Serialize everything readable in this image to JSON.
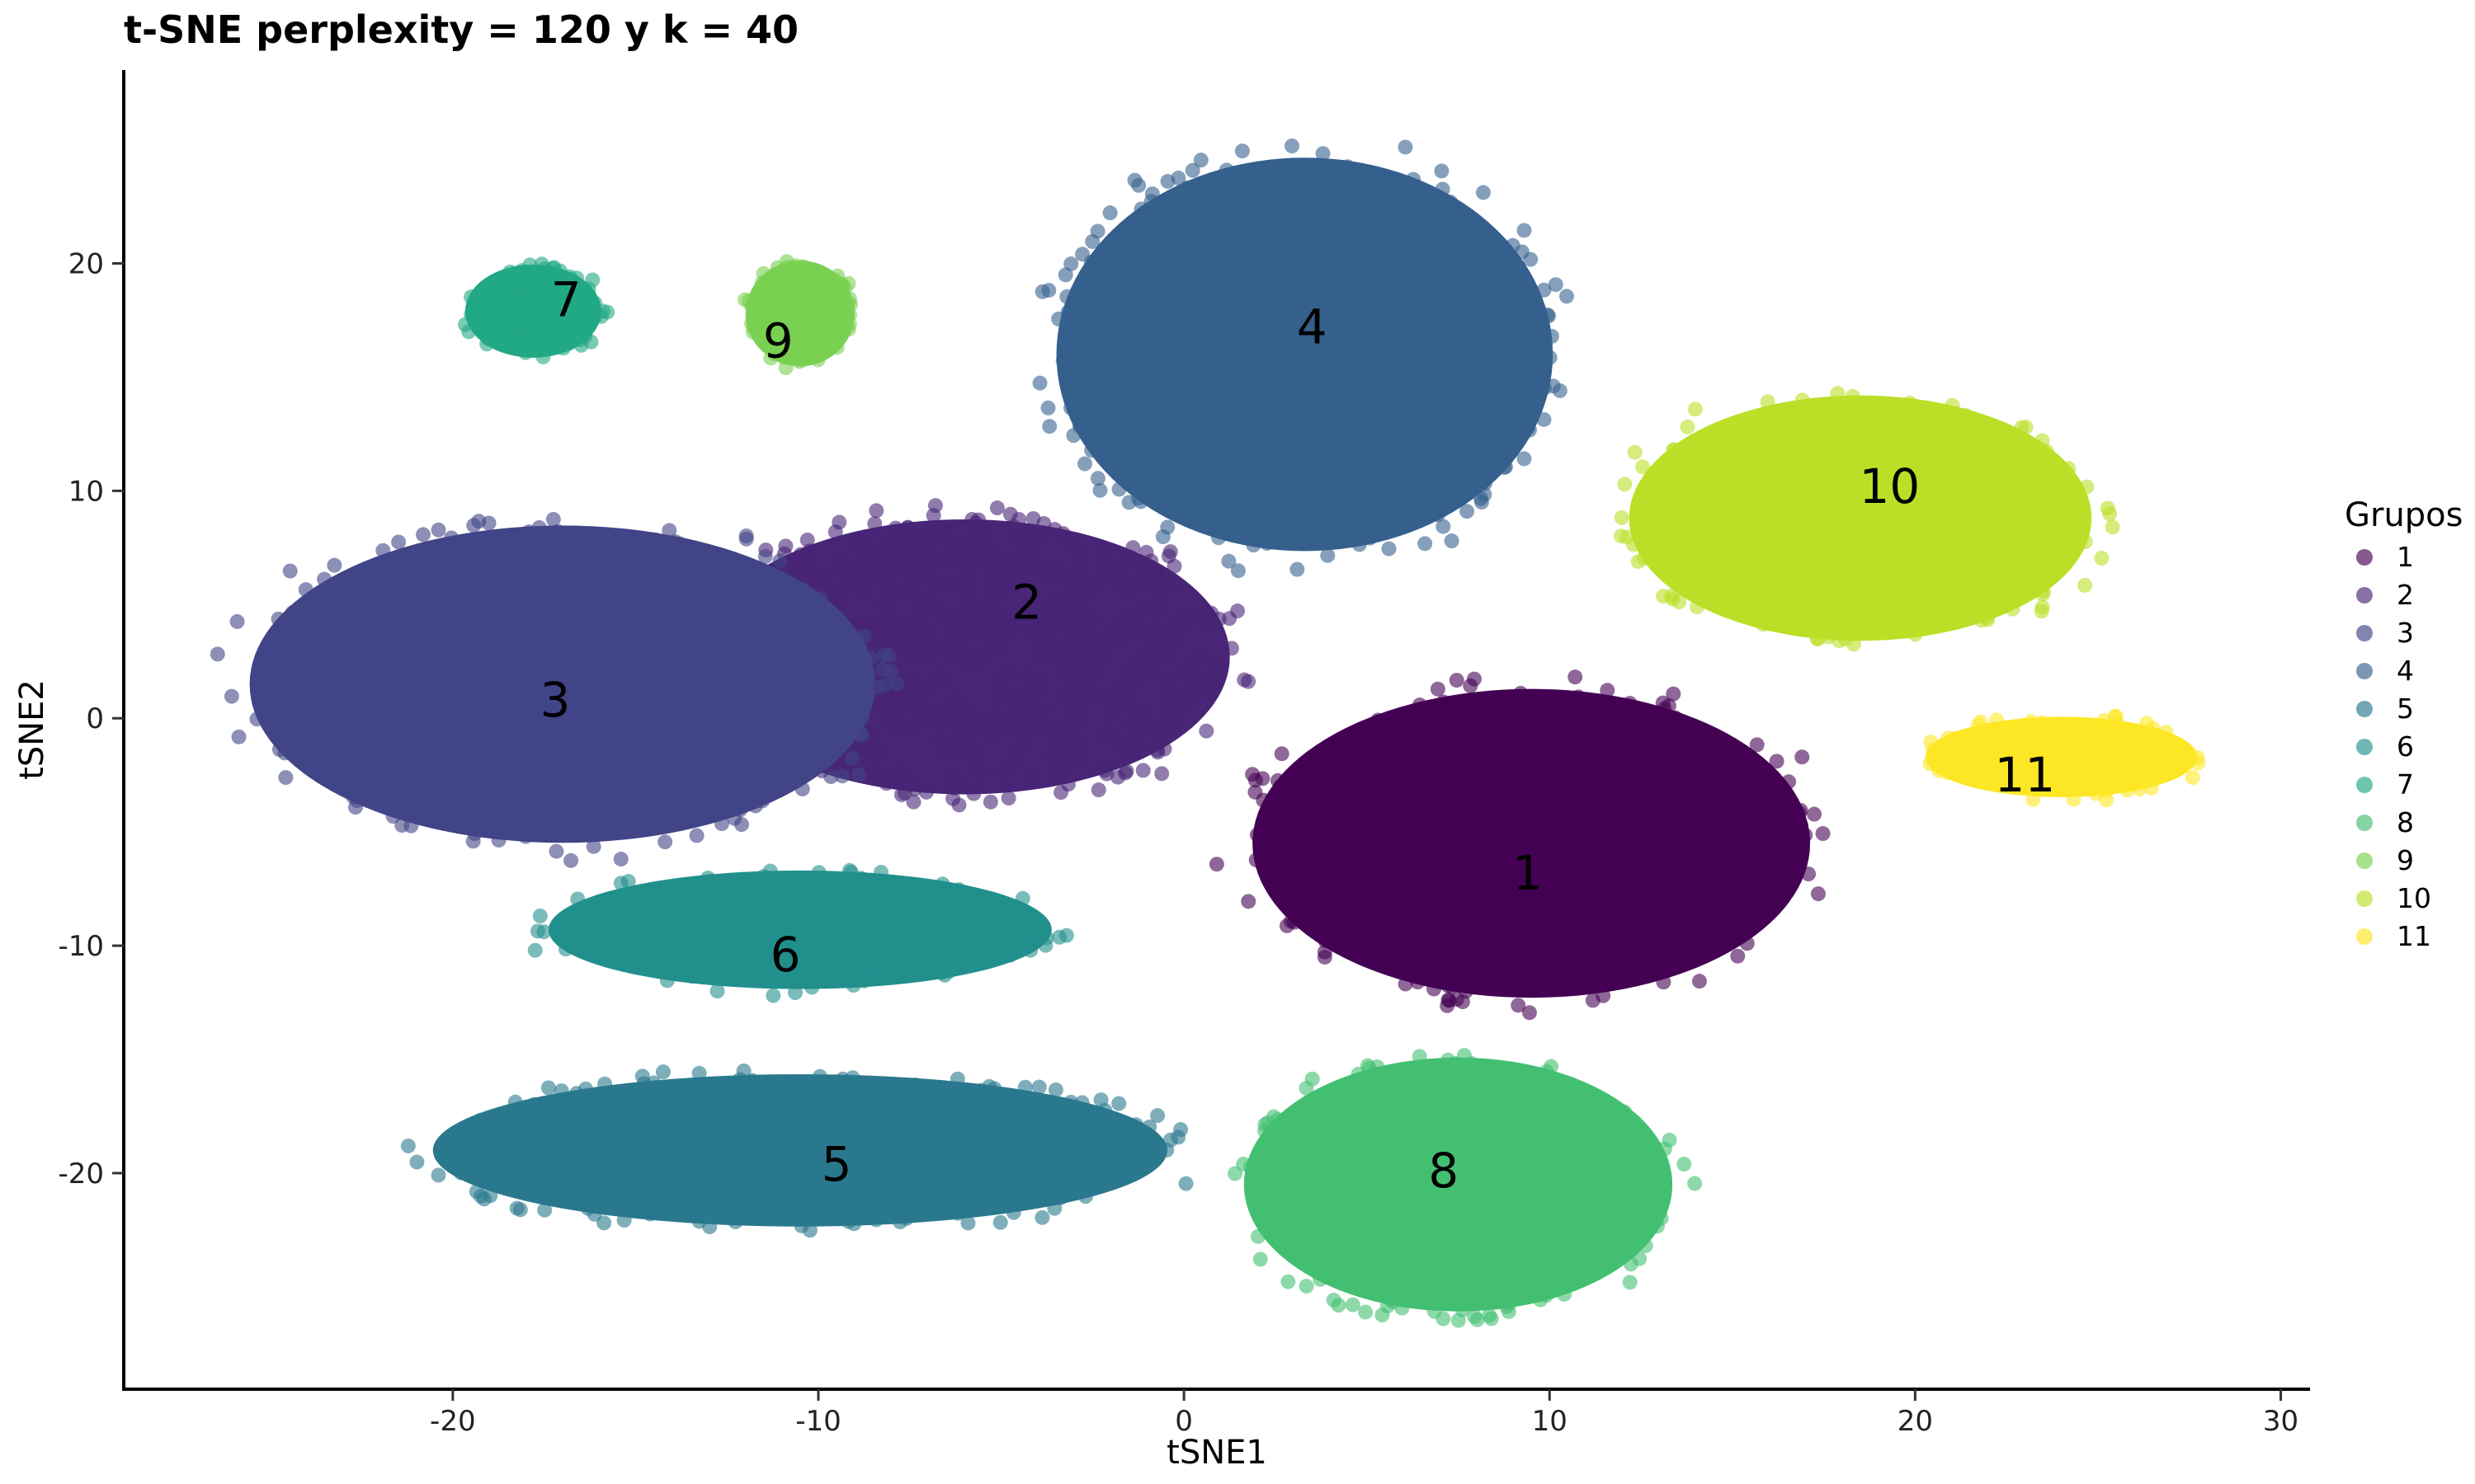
{
  "chart_data": {
    "type": "scatter",
    "title": "t-SNE perplexity = 120 y k = 40",
    "xlabel": "tSNE1",
    "ylabel": "tSNE2",
    "xlim": [
      -29,
      30.8
    ],
    "ylim": [
      -29.5,
      28.5
    ],
    "x_ticks": [
      -20,
      -10,
      0,
      10,
      20,
      30
    ],
    "y_ticks": [
      -20,
      -10,
      0,
      10,
      20
    ],
    "x_tick_labels": [
      "-20",
      "-10",
      "0",
      "10",
      "20",
      "30"
    ],
    "y_tick_labels": [
      "-20",
      "-10",
      "0",
      "10",
      "20"
    ],
    "grid": false,
    "legend": {
      "title": "Grupos",
      "position": "right",
      "entries": [
        "1",
        "2",
        "3",
        "4",
        "5",
        "6",
        "7",
        "8",
        "9",
        "10",
        "11"
      ]
    },
    "series": [
      {
        "name": "1",
        "color": "#440154",
        "label": "1",
        "label_x": 9.4,
        "label_y": -6.8,
        "cx": 9.5,
        "cy": -5.5,
        "rx": 8.2,
        "ry": 7.3
      },
      {
        "name": "2",
        "color": "#482576",
        "label": "2",
        "label_x": -4.3,
        "label_y": 5.1,
        "cx": -6.0,
        "cy": 2.7,
        "rx": 7.8,
        "ry": 6.5
      },
      {
        "name": "3",
        "color": "#414487",
        "label": "3",
        "label_x": -17.2,
        "label_y": 0.8,
        "cx": -17.0,
        "cy": 1.5,
        "rx": 9.2,
        "ry": 7.5
      },
      {
        "name": "4",
        "color": "#35608D",
        "label": "4",
        "label_x": 3.5,
        "label_y": 17.2,
        "cx": 3.3,
        "cy": 16.0,
        "rx": 7.3,
        "ry": 9.3
      },
      {
        "name": "5",
        "color": "#2A788E",
        "label": "5",
        "label_x": -9.5,
        "label_y": -19.6,
        "cx": -10.5,
        "cy": -19.0,
        "rx": 10.8,
        "ry": 3.6
      },
      {
        "name": "6",
        "color": "#21908C",
        "label": "6",
        "label_x": -10.9,
        "label_y": -10.4,
        "cx": -10.5,
        "cy": -9.3,
        "rx": 7.4,
        "ry": 2.8
      },
      {
        "name": "7",
        "color": "#22A884",
        "label": "7",
        "label_x": -16.9,
        "label_y": 18.4,
        "cx": -17.8,
        "cy": 17.9,
        "rx": 2.0,
        "ry": 2.2
      },
      {
        "name": "8",
        "color": "#43BF71",
        "label": "8",
        "label_x": 7.1,
        "label_y": -19.9,
        "cx": 7.5,
        "cy": -20.5,
        "rx": 6.3,
        "ry": 6.0
      },
      {
        "name": "9",
        "color": "#7AD151",
        "label": "9",
        "label_x": -11.1,
        "label_y": 16.6,
        "cx": -10.5,
        "cy": 17.8,
        "rx": 1.6,
        "ry": 2.5
      },
      {
        "name": "10",
        "color": "#BBDF27",
        "label": "10",
        "label_x": 19.3,
        "label_y": 10.2,
        "cx": 18.5,
        "cy": 8.8,
        "rx": 6.8,
        "ry": 5.8
      },
      {
        "name": "11",
        "color": "#FDE725",
        "label": "11",
        "label_x": 23.0,
        "label_y": -2.5,
        "cx": 24.0,
        "cy": -1.7,
        "rx": 4.0,
        "ry": 1.9
      }
    ]
  }
}
